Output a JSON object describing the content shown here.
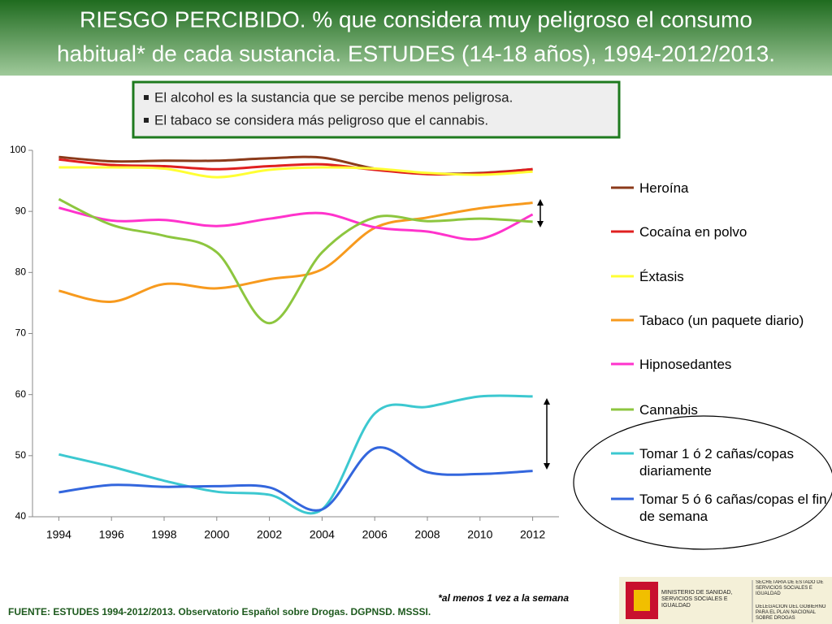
{
  "chart_data": {
    "type": "line",
    "title": [
      "RIESGO PERCIBIDO. % que  considera muy peligroso el consumo",
      "habitual* de cada sustancia. ESTUDES (14-18 años), 1994-2012/2013."
    ],
    "notes": [
      "El alcohol es la sustancia que se percibe menos peligrosa.",
      "El tabaco se considera más peligroso que el cannabis."
    ],
    "footnote": "*al menos 1 vez  a la semana",
    "source": "FUENTE: ESTUDES 1994-2012/2013. Observatorio Español sobre Drogas. DGPNSD. MSSSI.",
    "logo": [
      "MINISTERIO DE SANIDAD, SERVICIOS SOCIALES E IGUALDAD",
      "SECRETARÍA DE ESTADO DE SERVICIOS SOCIALES E IGUALDAD",
      "DELEGACIÓN DEL GOBIERNO PARA EL PLAN NACIONAL SOBRE DROGAS"
    ],
    "x": [
      1994,
      1996,
      1998,
      2000,
      2002,
      2004,
      2006,
      2008,
      2010,
      2012
    ],
    "xlim": [
      1993,
      2013
    ],
    "xticks": [
      1994,
      1996,
      1998,
      2000,
      2002,
      2004,
      2006,
      2008,
      2010,
      2012
    ],
    "ylim": [
      40,
      100
    ],
    "yticks": [
      40,
      50,
      60,
      70,
      80,
      90,
      100
    ],
    "series": [
      {
        "name": "Heroína",
        "color": "#8b3a1a",
        "values": [
          98.9,
          98.2,
          98.3,
          98.3,
          98.7,
          98.8,
          97.0,
          96.2,
          96.3,
          96.9
        ]
      },
      {
        "name": "Cocaína en polvo",
        "color": "#e02020",
        "values": [
          98.5,
          97.6,
          97.4,
          96.9,
          97.4,
          97.7,
          96.8,
          96.1,
          96.2,
          96.9
        ]
      },
      {
        "name": "Éxtasis",
        "color": "#ffff33",
        "values": [
          97.2,
          97.2,
          97.0,
          95.6,
          96.8,
          97.2,
          97.0,
          96.3,
          96.0,
          96.5
        ]
      },
      {
        "name": "Tabaco (un paquete diario)",
        "color": "#f79a1e",
        "values": [
          77.0,
          75.2,
          78.1,
          77.4,
          78.9,
          80.5,
          87.3,
          89.0,
          90.5,
          91.4
        ]
      },
      {
        "name": "Hipnosedantes",
        "color": "#ff33cc",
        "values": [
          90.6,
          88.5,
          88.6,
          87.6,
          88.8,
          89.7,
          87.4,
          86.7,
          85.5,
          89.5
        ]
      },
      {
        "name": "Cannabis",
        "color": "#8dc63f",
        "values": [
          92.0,
          87.8,
          86.0,
          83.3,
          71.7,
          83.3,
          89.0,
          88.4,
          88.8,
          88.3
        ]
      },
      {
        "name": "Tomar 1 ó 2 cañas/copas diariamente",
        "color": "#3cc8d0",
        "values": [
          50.2,
          48.2,
          45.9,
          44.1,
          43.6,
          41.2,
          56.9,
          58.0,
          59.7,
          59.7
        ]
      },
      {
        "name": "Tomar 5 ó 6 cañas/copas el fin de semana",
        "color": "#3366dd",
        "values": [
          44.0,
          45.2,
          44.9,
          45.0,
          44.8,
          41.2,
          51.2,
          47.3,
          47.0,
          47.5
        ]
      }
    ]
  }
}
